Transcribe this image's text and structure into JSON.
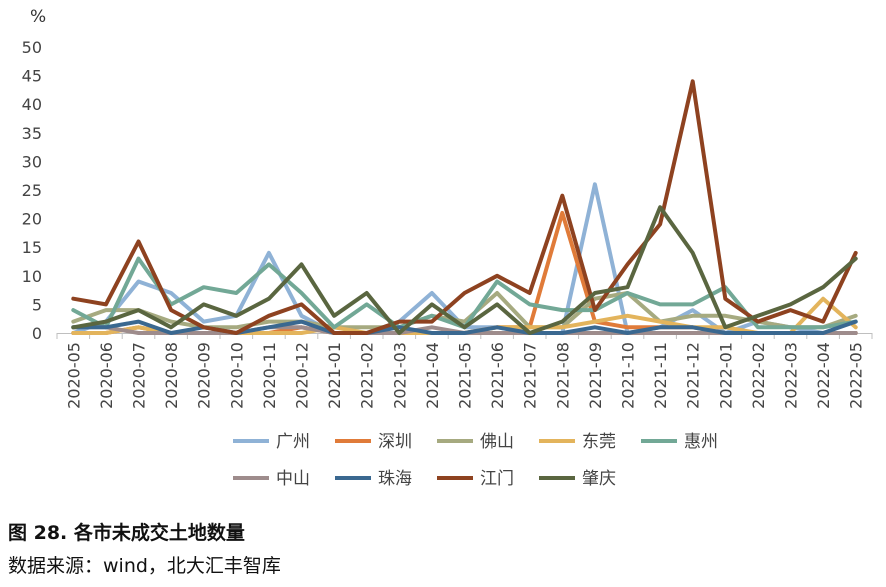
{
  "figure": {
    "caption": "图 28.  各市未成交土地数量",
    "source": "数据来源：wind，北大汇丰智库"
  },
  "chart_data": {
    "type": "line",
    "unit_label": "%",
    "ylim": [
      0,
      50
    ],
    "yticks": [
      0,
      5,
      10,
      15,
      20,
      25,
      30,
      35,
      40,
      45,
      50
    ],
    "grid": false,
    "legend_position": "bottom",
    "x": [
      "2020-05",
      "2020-06",
      "2020-07",
      "2020-08",
      "2020-09",
      "2020-10",
      "2020-11",
      "2020-12",
      "2021-01",
      "2021-02",
      "2021-03",
      "2021-04",
      "2021-05",
      "2021-06",
      "2021-07",
      "2021-08",
      "2021-09",
      "2021-10",
      "2021-11",
      "2021-12",
      "2022-01",
      "2022-02",
      "2022-03",
      "2022-04",
      "2022-05"
    ],
    "series": [
      {
        "name": "广州",
        "color": "#8FB2D6",
        "values": [
          0,
          2,
          9,
          7,
          2,
          3,
          14,
          3,
          0,
          0,
          2,
          7,
          1,
          1,
          0,
          0,
          26,
          0,
          1,
          4,
          0,
          2,
          1,
          0,
          0
        ]
      },
      {
        "name": "深圳",
        "color": "#E07B39",
        "values": [
          0,
          0,
          1,
          0,
          0,
          0,
          0,
          1,
          0,
          0,
          0,
          0,
          0,
          1,
          1,
          21,
          2,
          1,
          1,
          1,
          0,
          0,
          0,
          0,
          0
        ]
      },
      {
        "name": "佛山",
        "color": "#A6AA80",
        "values": [
          2,
          4,
          4,
          2,
          1,
          1,
          2,
          2,
          1,
          1,
          1,
          3,
          2,
          7,
          1,
          1,
          6,
          7,
          2,
          3,
          3,
          2,
          1,
          1,
          3
        ]
      },
      {
        "name": "东莞",
        "color": "#E3B45C",
        "values": [
          0,
          0,
          1,
          0,
          0,
          0,
          0,
          0,
          1,
          0,
          0,
          0,
          0,
          1,
          1,
          1,
          2,
          3,
          2,
          1,
          1,
          0,
          0,
          6,
          1
        ]
      },
      {
        "name": "惠州",
        "color": "#72A896",
        "values": [
          4,
          1,
          13,
          5,
          8,
          7,
          12,
          7,
          1,
          5,
          1,
          3,
          1,
          9,
          5,
          4,
          4,
          7,
          5,
          5,
          8,
          1,
          1,
          1,
          2
        ]
      },
      {
        "name": "中山",
        "color": "#9E8C8C",
        "values": [
          1,
          1,
          0,
          0,
          0,
          0,
          1,
          1,
          0,
          0,
          0,
          1,
          0,
          0,
          0,
          0,
          0,
          0,
          0,
          0,
          0,
          0,
          0,
          0,
          0
        ]
      },
      {
        "name": "珠海",
        "color": "#3A6890",
        "values": [
          1,
          1,
          2,
          0,
          1,
          0,
          1,
          2,
          0,
          0,
          1,
          0,
          0,
          1,
          0,
          0,
          1,
          0,
          1,
          1,
          0,
          0,
          0,
          0,
          2
        ]
      },
      {
        "name": "江门",
        "color": "#8E4220",
        "values": [
          6,
          5,
          16,
          4,
          1,
          0,
          3,
          5,
          0,
          0,
          2,
          2,
          7,
          10,
          7,
          24,
          4,
          12,
          19,
          44,
          6,
          2,
          4,
          2,
          14
        ]
      },
      {
        "name": "肇庆",
        "color": "#5A6640",
        "values": [
          1,
          2,
          4,
          1,
          5,
          3,
          6,
          12,
          3,
          7,
          0,
          5,
          1,
          5,
          0,
          2,
          7,
          8,
          22,
          14,
          1,
          3,
          5,
          8,
          13
        ]
      }
    ]
  }
}
